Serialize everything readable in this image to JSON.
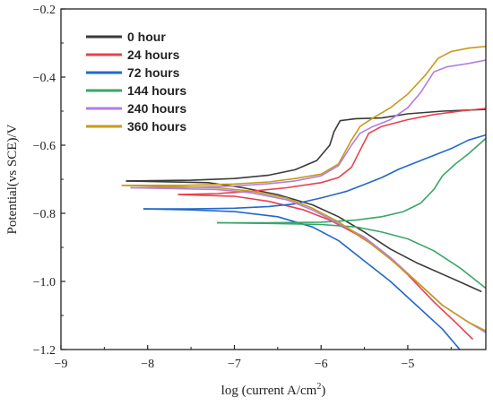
{
  "chart_data": {
    "type": "line",
    "xlabel": "log (current A/cm",
    "xlabel_sup": "2",
    "xlabel_end": ")",
    "ylabel": "Potential(vs SCE)/V",
    "xlim": [
      -9,
      -4.1
    ],
    "ylim": [
      -1.2,
      -0.2
    ],
    "xticks": [
      -9,
      -8,
      -7,
      -6,
      -5
    ],
    "yticks": [
      -0.2,
      -0.4,
      -0.6,
      -0.8,
      -1.0,
      -1.2
    ],
    "xtick_labels": [
      "−9",
      "−8",
      "−7",
      "−6",
      "−5"
    ],
    "ytick_labels": [
      "−0.2",
      "−0.4",
      "−0.6",
      "−0.8",
      "−1.0",
      "−1.2"
    ],
    "legend_position": "top-left",
    "series": [
      {
        "name": "0 hour",
        "color": "#3a3a3a",
        "anodic": [
          [
            -8.25,
            -0.705
          ],
          [
            -7.5,
            -0.703
          ],
          [
            -7.0,
            -0.698
          ],
          [
            -6.6,
            -0.688
          ],
          [
            -6.3,
            -0.672
          ],
          [
            -6.05,
            -0.645
          ],
          [
            -5.9,
            -0.6
          ],
          [
            -5.85,
            -0.56
          ],
          [
            -5.78,
            -0.528
          ],
          [
            -5.6,
            -0.522
          ],
          [
            -5.3,
            -0.52
          ],
          [
            -5.0,
            -0.508
          ],
          [
            -4.6,
            -0.5
          ],
          [
            -4.1,
            -0.495
          ]
        ],
        "cathodic": [
          [
            -8.25,
            -0.705
          ],
          [
            -7.3,
            -0.71
          ],
          [
            -6.9,
            -0.725
          ],
          [
            -6.5,
            -0.745
          ],
          [
            -6.1,
            -0.775
          ],
          [
            -5.8,
            -0.81
          ],
          [
            -5.5,
            -0.855
          ],
          [
            -5.2,
            -0.905
          ],
          [
            -4.9,
            -0.945
          ],
          [
            -4.5,
            -0.99
          ],
          [
            -4.15,
            -1.03
          ]
        ]
      },
      {
        "name": "24 hours",
        "color": "#e8414b",
        "anodic": [
          [
            -7.65,
            -0.745
          ],
          [
            -7.2,
            -0.742
          ],
          [
            -6.8,
            -0.735
          ],
          [
            -6.4,
            -0.725
          ],
          [
            -6.0,
            -0.71
          ],
          [
            -5.8,
            -0.695
          ],
          [
            -5.65,
            -0.665
          ],
          [
            -5.55,
            -0.615
          ],
          [
            -5.45,
            -0.565
          ],
          [
            -5.3,
            -0.545
          ],
          [
            -5.0,
            -0.525
          ],
          [
            -4.7,
            -0.51
          ],
          [
            -4.4,
            -0.5
          ],
          [
            -4.1,
            -0.492
          ]
        ],
        "cathodic": [
          [
            -7.65,
            -0.745
          ],
          [
            -7.0,
            -0.75
          ],
          [
            -6.6,
            -0.765
          ],
          [
            -6.2,
            -0.79
          ],
          [
            -5.9,
            -0.82
          ],
          [
            -5.6,
            -0.86
          ],
          [
            -5.3,
            -0.91
          ],
          [
            -5.0,
            -0.98
          ],
          [
            -4.7,
            -1.06
          ],
          [
            -4.45,
            -1.12
          ],
          [
            -4.25,
            -1.17
          ]
        ]
      },
      {
        "name": "72 hours",
        "color": "#2268c8",
        "anodic": [
          [
            -8.05,
            -0.787
          ],
          [
            -7.5,
            -0.787
          ],
          [
            -7.0,
            -0.785
          ],
          [
            -6.6,
            -0.78
          ],
          [
            -6.3,
            -0.772
          ],
          [
            -6.0,
            -0.755
          ],
          [
            -5.7,
            -0.735
          ],
          [
            -5.5,
            -0.715
          ],
          [
            -5.3,
            -0.695
          ],
          [
            -5.1,
            -0.67
          ],
          [
            -4.95,
            -0.655
          ],
          [
            -4.7,
            -0.63
          ],
          [
            -4.5,
            -0.61
          ],
          [
            -4.3,
            -0.585
          ],
          [
            -4.1,
            -0.57
          ]
        ],
        "cathodic": [
          [
            -8.05,
            -0.787
          ],
          [
            -7.5,
            -0.79
          ],
          [
            -7.0,
            -0.795
          ],
          [
            -6.5,
            -0.81
          ],
          [
            -6.1,
            -0.84
          ],
          [
            -5.8,
            -0.88
          ],
          [
            -5.5,
            -0.94
          ],
          [
            -5.2,
            -1.0
          ],
          [
            -4.9,
            -1.07
          ],
          [
            -4.6,
            -1.14
          ],
          [
            -4.4,
            -1.2
          ]
        ]
      },
      {
        "name": "144 hours",
        "color": "#3aa56a",
        "anodic": [
          [
            -7.2,
            -0.828
          ],
          [
            -6.6,
            -0.828
          ],
          [
            -6.0,
            -0.826
          ],
          [
            -5.6,
            -0.82
          ],
          [
            -5.3,
            -0.81
          ],
          [
            -5.05,
            -0.795
          ],
          [
            -4.85,
            -0.77
          ],
          [
            -4.7,
            -0.73
          ],
          [
            -4.6,
            -0.69
          ],
          [
            -4.45,
            -0.655
          ],
          [
            -4.3,
            -0.625
          ],
          [
            -4.1,
            -0.58
          ]
        ],
        "cathodic": [
          [
            -7.2,
            -0.828
          ],
          [
            -6.5,
            -0.83
          ],
          [
            -6.0,
            -0.833
          ],
          [
            -5.6,
            -0.84
          ],
          [
            -5.3,
            -0.855
          ],
          [
            -5.0,
            -0.875
          ],
          [
            -4.7,
            -0.91
          ],
          [
            -4.4,
            -0.96
          ],
          [
            -4.1,
            -1.02
          ]
        ]
      },
      {
        "name": "240 hours",
        "color": "#b27ee0",
        "anodic": [
          [
            -8.2,
            -0.725
          ],
          [
            -7.6,
            -0.724
          ],
          [
            -7.0,
            -0.72
          ],
          [
            -6.6,
            -0.713
          ],
          [
            -6.3,
            -0.705
          ],
          [
            -6.0,
            -0.69
          ],
          [
            -5.8,
            -0.66
          ],
          [
            -5.65,
            -0.6
          ],
          [
            -5.55,
            -0.565
          ],
          [
            -5.4,
            -0.545
          ],
          [
            -5.2,
            -0.525
          ],
          [
            -5.0,
            -0.49
          ],
          [
            -4.85,
            -0.445
          ],
          [
            -4.7,
            -0.385
          ],
          [
            -4.55,
            -0.37
          ],
          [
            -4.3,
            -0.36
          ],
          [
            -4.1,
            -0.35
          ]
        ],
        "cathodic": [
          [
            -8.2,
            -0.725
          ],
          [
            -7.2,
            -0.73
          ],
          [
            -6.8,
            -0.74
          ],
          [
            -6.4,
            -0.76
          ],
          [
            -6.1,
            -0.79
          ],
          [
            -5.8,
            -0.83
          ],
          [
            -5.5,
            -0.87
          ],
          [
            -5.2,
            -0.93
          ],
          [
            -4.9,
            -1.0
          ],
          [
            -4.6,
            -1.07
          ],
          [
            -4.3,
            -1.12
          ],
          [
            -4.1,
            -1.15
          ]
        ]
      },
      {
        "name": "360 hours",
        "color": "#c89a1a",
        "anodic": [
          [
            -8.3,
            -0.718
          ],
          [
            -7.6,
            -0.718
          ],
          [
            -7.0,
            -0.714
          ],
          [
            -6.6,
            -0.708
          ],
          [
            -6.3,
            -0.698
          ],
          [
            -6.0,
            -0.685
          ],
          [
            -5.8,
            -0.655
          ],
          [
            -5.65,
            -0.585
          ],
          [
            -5.55,
            -0.545
          ],
          [
            -5.4,
            -0.52
          ],
          [
            -5.2,
            -0.49
          ],
          [
            -5.0,
            -0.45
          ],
          [
            -4.8,
            -0.395
          ],
          [
            -4.65,
            -0.345
          ],
          [
            -4.5,
            -0.325
          ],
          [
            -4.3,
            -0.315
          ],
          [
            -4.1,
            -0.31
          ]
        ],
        "cathodic": [
          [
            -8.3,
            -0.718
          ],
          [
            -7.2,
            -0.725
          ],
          [
            -6.8,
            -0.735
          ],
          [
            -6.4,
            -0.755
          ],
          [
            -6.1,
            -0.785
          ],
          [
            -5.8,
            -0.825
          ],
          [
            -5.5,
            -0.875
          ],
          [
            -5.2,
            -0.935
          ],
          [
            -4.9,
            -1.0
          ],
          [
            -4.6,
            -1.07
          ],
          [
            -4.3,
            -1.12
          ],
          [
            -4.1,
            -1.145
          ]
        ]
      }
    ]
  }
}
